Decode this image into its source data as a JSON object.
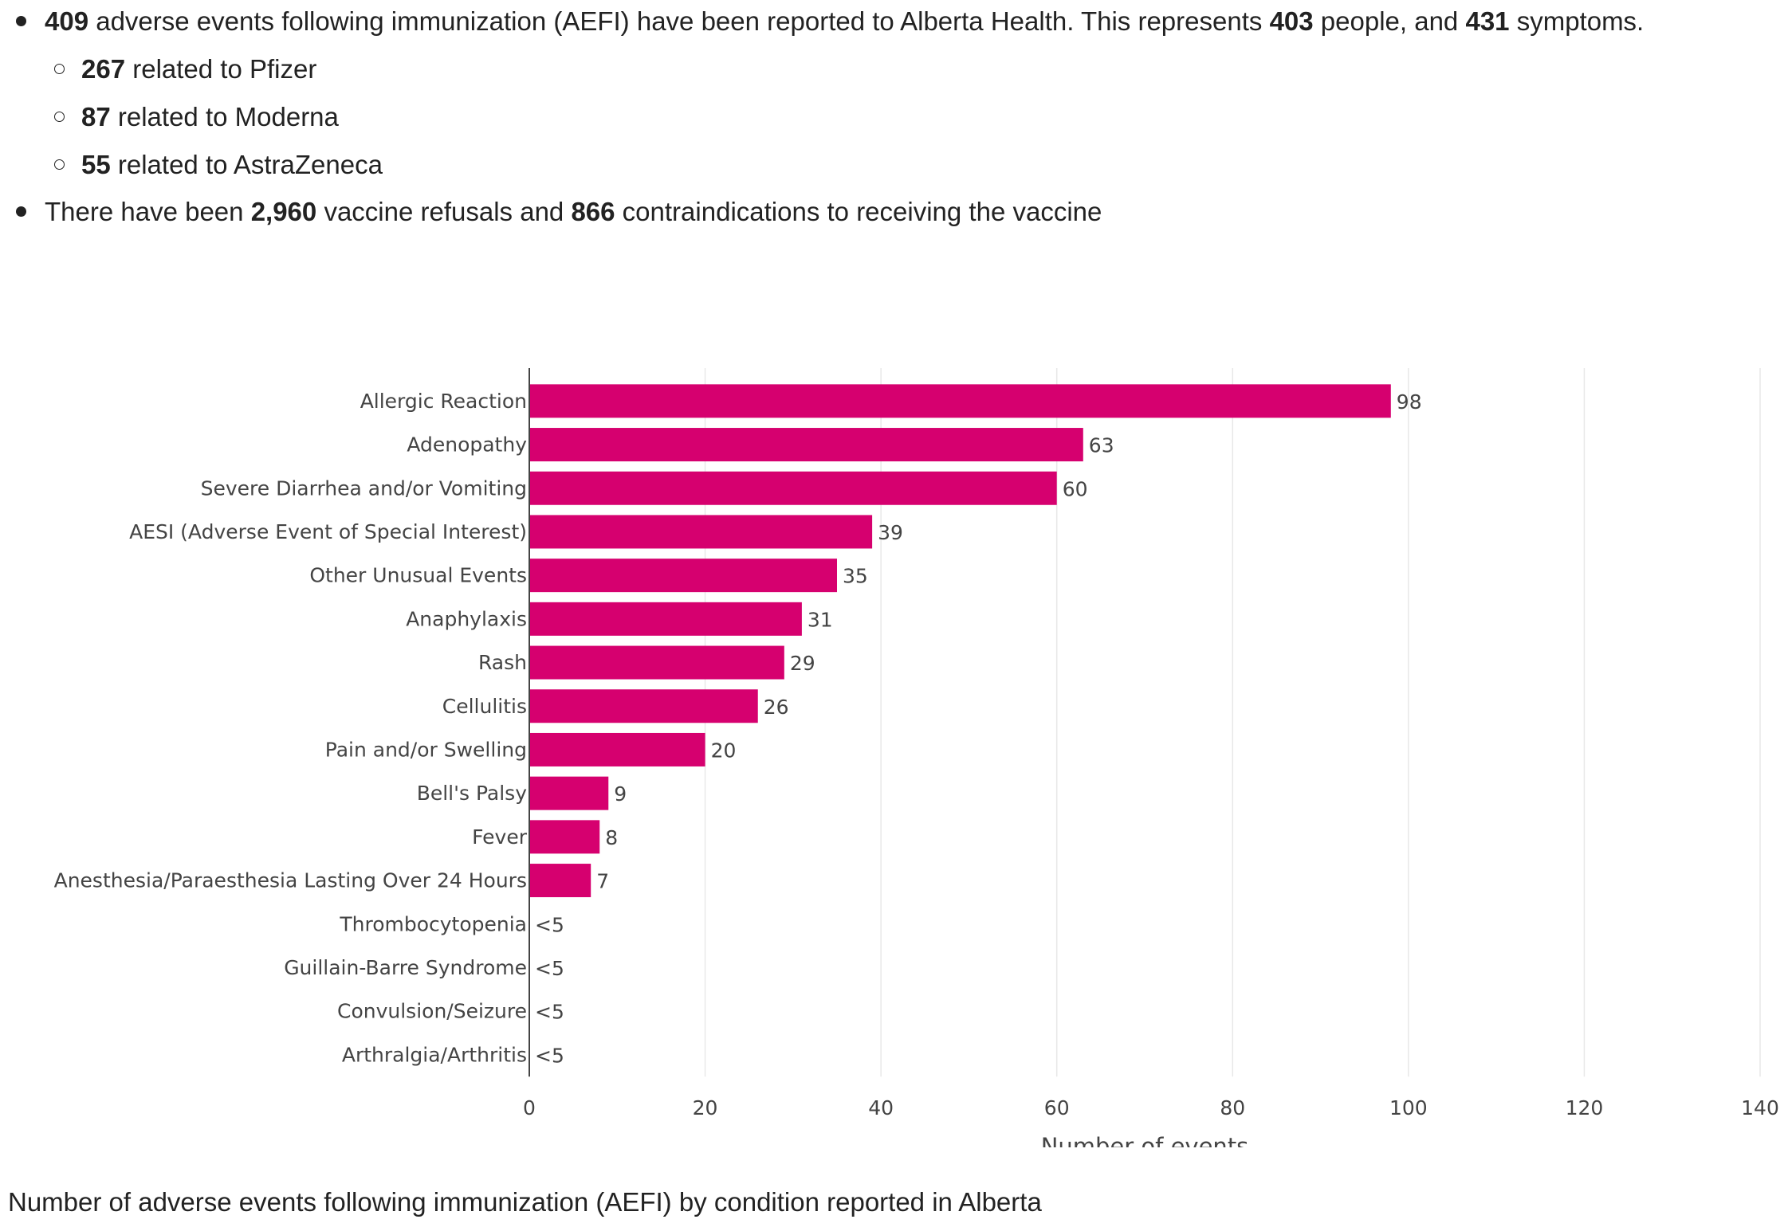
{
  "summary": {
    "line1": {
      "n_events": "409",
      "t1": " adverse events following immunization (AEFI) have been reported to Alberta Health. This represents ",
      "n_people": "403",
      "t2": " people, and ",
      "n_symptoms": "431",
      "t3": " symptoms."
    },
    "vaccines": [
      {
        "count": "267",
        "text": " related to Pfizer"
      },
      {
        "count": "87",
        "text": " related to Moderna"
      },
      {
        "count": "55",
        "text": " related to AstraZeneca"
      }
    ],
    "line2": {
      "t1": "There have been ",
      "n_refusals": "2,960",
      "t2": " vaccine refusals and ",
      "n_contra": "866",
      "t3": " contraindications to receiving the vaccine"
    }
  },
  "chart_data": {
    "type": "bar",
    "orientation": "horizontal",
    "categories": [
      "Allergic Reaction",
      "Adenopathy",
      "Severe Diarrhea and/or Vomiting",
      "AESI (Adverse Event of Special Interest)",
      "Other Unusual Events",
      "Anaphylaxis",
      "Rash",
      "Cellulitis",
      "Pain and/or Swelling",
      "Bell's Palsy",
      "Fever",
      "Anesthesia/Paraesthesia Lasting Over 24 Hours",
      "Thrombocytopenia",
      "Guillain-Barre Syndrome",
      "Convulsion/Seizure",
      "Arthralgia/Arthritis"
    ],
    "values": [
      98,
      63,
      60,
      39,
      35,
      31,
      29,
      26,
      20,
      9,
      8,
      7,
      null,
      null,
      null,
      null
    ],
    "value_labels": [
      "98",
      "63",
      "60",
      "39",
      "35",
      "31",
      "29",
      "26",
      "20",
      "9",
      "8",
      "7",
      "<5",
      "<5",
      "<5",
      "<5"
    ],
    "xlabel": "Number of events",
    "ylabel": "",
    "xlim": [
      0,
      140
    ],
    "xticks": [
      0,
      20,
      40,
      60,
      80,
      100,
      120,
      140
    ],
    "grid": "vertical",
    "bar_color": "#d6006f"
  },
  "caption": "Number of adverse events following immunization (AEFI) by condition reported in Alberta"
}
